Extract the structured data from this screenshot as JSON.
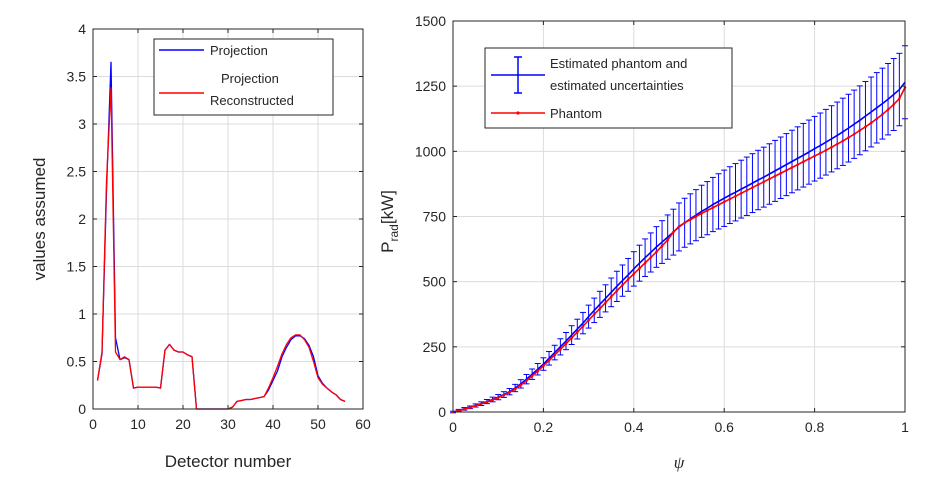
{
  "chart_data": [
    {
      "type": "line",
      "xlabel": "Detector number",
      "ylabel": "values assumed",
      "xlim": [
        0,
        60
      ],
      "ylim": [
        0,
        4
      ],
      "xticks": [
        0,
        10,
        20,
        30,
        40,
        50,
        60
      ],
      "yticks": [
        0,
        0.5,
        1,
        1.5,
        2,
        2.5,
        3,
        3.5,
        4
      ],
      "grid": true,
      "legend_position": "top-right",
      "series": [
        {
          "name": "Projection",
          "color": "#0000ff",
          "x": [
            1,
            2,
            3,
            4,
            5,
            6,
            7,
            8,
            9,
            10,
            11,
            12,
            13,
            14,
            15,
            16,
            17,
            18,
            19,
            20,
            21,
            22,
            23,
            24,
            25,
            26,
            27,
            28,
            29,
            30,
            31,
            32,
            33,
            34,
            35,
            36,
            37,
            38,
            39,
            40,
            41,
            42,
            43,
            44,
            45,
            46,
            47,
            48,
            49,
            50,
            51,
            52,
            53,
            54,
            55,
            56
          ],
          "y": [
            0.3,
            0.58,
            2.3,
            3.65,
            0.75,
            0.52,
            0.54,
            0.52,
            0.22,
            0.23,
            0.23,
            0.23,
            0.23,
            0.23,
            0.22,
            0.62,
            0.68,
            0.62,
            0.6,
            0.6,
            0.57,
            0.55,
            0.0,
            0.0,
            0.0,
            0.0,
            0.0,
            0.0,
            0.0,
            0.0,
            0.02,
            0.08,
            0.09,
            0.1,
            0.1,
            0.11,
            0.12,
            0.13,
            0.2,
            0.3,
            0.4,
            0.55,
            0.65,
            0.73,
            0.77,
            0.77,
            0.74,
            0.67,
            0.55,
            0.35,
            0.27,
            0.22,
            0.18,
            0.15,
            0.1,
            0.08
          ]
        },
        {
          "name": "Projection\nReconstructed",
          "color": "#ff0000",
          "x": [
            1,
            2,
            3,
            4,
            5,
            6,
            7,
            8,
            9,
            10,
            11,
            12,
            13,
            14,
            15,
            16,
            17,
            18,
            19,
            20,
            21,
            22,
            23,
            24,
            25,
            26,
            27,
            28,
            29,
            30,
            31,
            32,
            33,
            34,
            35,
            36,
            37,
            38,
            39,
            40,
            41,
            42,
            43,
            44,
            45,
            46,
            47,
            48,
            49,
            50,
            51,
            52,
            53,
            54,
            55,
            56
          ],
          "y": [
            0.3,
            0.6,
            2.4,
            3.38,
            0.6,
            0.52,
            0.55,
            0.52,
            0.22,
            0.23,
            0.23,
            0.23,
            0.23,
            0.23,
            0.22,
            0.62,
            0.68,
            0.62,
            0.6,
            0.6,
            0.57,
            0.55,
            0.0,
            0.0,
            0.0,
            0.0,
            0.0,
            0.0,
            0.0,
            0.0,
            0.02,
            0.08,
            0.09,
            0.1,
            0.1,
            0.11,
            0.12,
            0.13,
            0.22,
            0.33,
            0.45,
            0.58,
            0.68,
            0.75,
            0.78,
            0.78,
            0.73,
            0.65,
            0.5,
            0.33,
            0.26,
            0.22,
            0.18,
            0.15,
            0.1,
            0.08
          ]
        }
      ]
    },
    {
      "type": "line",
      "xlabel": "ψ",
      "ylabel_main": "P",
      "ylabel_sub": "rad",
      "ylabel_unit": "[kW]",
      "xlim": [
        0,
        1
      ],
      "ylim": [
        0,
        1500
      ],
      "xticks": [
        0,
        0.2,
        0.4,
        0.6,
        0.8,
        1
      ],
      "yticks": [
        0,
        250,
        500,
        750,
        1000,
        1250,
        1500
      ],
      "grid": true,
      "legend_position": "top-left",
      "series": [
        {
          "name": "Estimated phantom and\nestimated uncertainties",
          "color": "#0000ff",
          "errorbars": true,
          "x": [
            0,
            0.0125,
            0.025,
            0.0375,
            0.05,
            0.0625,
            0.075,
            0.0875,
            0.1,
            0.1125,
            0.125,
            0.1375,
            0.15,
            0.1625,
            0.175,
            0.1875,
            0.2,
            0.2125,
            0.225,
            0.2375,
            0.25,
            0.2625,
            0.275,
            0.2875,
            0.3,
            0.3125,
            0.325,
            0.3375,
            0.35,
            0.3625,
            0.375,
            0.3875,
            0.4,
            0.4125,
            0.425,
            0.4375,
            0.45,
            0.4625,
            0.475,
            0.4875,
            0.5,
            0.5125,
            0.525,
            0.5375,
            0.55,
            0.5625,
            0.575,
            0.5875,
            0.6,
            0.6125,
            0.625,
            0.6375,
            0.65,
            0.6625,
            0.675,
            0.6875,
            0.7,
            0.7125,
            0.725,
            0.7375,
            0.75,
            0.7625,
            0.775,
            0.7875,
            0.8,
            0.8125,
            0.825,
            0.8375,
            0.85,
            0.8625,
            0.875,
            0.8875,
            0.9,
            0.9125,
            0.925,
            0.9375,
            0.95,
            0.9625,
            0.975,
            0.9875,
            1
          ],
          "y": [
            0,
            6,
            12,
            18,
            25,
            32,
            40,
            48,
            57,
            67,
            78,
            92,
            108,
            126,
            145,
            164,
            184,
            206,
            228,
            250,
            272,
            295,
            318,
            341,
            366,
            390,
            413,
            436,
            459,
            482,
            504,
            526,
            549,
            571,
            592,
            612,
            633,
            652,
            671,
            690,
            710,
            726,
            741,
            755,
            770,
            782,
            796,
            808,
            820,
            832,
            843,
            855,
            866,
            878,
            890,
            901,
            913,
            925,
            937,
            949,
            961,
            973,
            985,
            997,
            1010,
            1022,
            1035,
            1048,
            1061,
            1075,
            1089,
            1104,
            1119,
            1135,
            1151,
            1167,
            1183,
            1200,
            1218,
            1237,
            1265
          ],
          "err": [
            3,
            4,
            5,
            5,
            6,
            7,
            8,
            9,
            10,
            11,
            12,
            14,
            16,
            18,
            20,
            22,
            24,
            26,
            28,
            31,
            33,
            36,
            38,
            41,
            44,
            47,
            50,
            52,
            55,
            58,
            60,
            63,
            66,
            69,
            72,
            75,
            78,
            82,
            85,
            88,
            92,
            94,
            96,
            98,
            100,
            102,
            104,
            106,
            108,
            109,
            110,
            111,
            112,
            113,
            114,
            115,
            116,
            117,
            118,
            119,
            120,
            121,
            122,
            123,
            124,
            125,
            126,
            127,
            128,
            129,
            130,
            131,
            132,
            133,
            134,
            135,
            136,
            137,
            138,
            139,
            140
          ]
        },
        {
          "name": "Phantom",
          "color": "#ff0000",
          "x": [
            0,
            0.0125,
            0.025,
            0.0375,
            0.05,
            0.0625,
            0.075,
            0.0875,
            0.1,
            0.1125,
            0.125,
            0.1375,
            0.15,
            0.1625,
            0.175,
            0.1875,
            0.2,
            0.2125,
            0.225,
            0.2375,
            0.25,
            0.2625,
            0.275,
            0.2875,
            0.3,
            0.3125,
            0.325,
            0.3375,
            0.35,
            0.3625,
            0.375,
            0.3875,
            0.4,
            0.4125,
            0.425,
            0.4375,
            0.45,
            0.4625,
            0.475,
            0.4875,
            0.5,
            0.5125,
            0.525,
            0.5375,
            0.55,
            0.5625,
            0.575,
            0.5875,
            0.6,
            0.6125,
            0.625,
            0.6375,
            0.65,
            0.6625,
            0.675,
            0.6875,
            0.7,
            0.7125,
            0.725,
            0.7375,
            0.75,
            0.7625,
            0.775,
            0.7875,
            0.8,
            0.8125,
            0.825,
            0.8375,
            0.85,
            0.8625,
            0.875,
            0.8875,
            0.9,
            0.9125,
            0.925,
            0.9375,
            0.95,
            0.9625,
            0.975,
            0.9875,
            1
          ],
          "y": [
            0,
            5,
            11,
            17,
            24,
            31,
            38,
            46,
            55,
            65,
            75,
            88,
            103,
            120,
            138,
            157,
            177,
            198,
            219,
            240,
            262,
            284,
            306,
            329,
            352,
            375,
            397,
            420,
            442,
            465,
            487,
            509,
            530,
            551,
            572,
            593,
            614,
            637,
            660,
            690,
            712,
            726,
            738,
            750,
            762,
            773,
            784,
            795,
            806,
            817,
            828,
            839,
            850,
            861,
            872,
            883,
            894,
            905,
            916,
            927,
            938,
            949,
            960,
            971,
            982,
            993,
            1004,
            1016,
            1028,
            1040,
            1053,
            1066,
            1080,
            1094,
            1109,
            1125,
            1142,
            1160,
            1180,
            1202,
            1245
          ]
        }
      ]
    }
  ]
}
